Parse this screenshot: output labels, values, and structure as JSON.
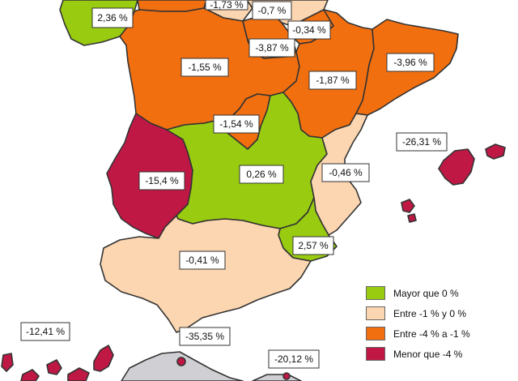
{
  "colors": {
    "green": "#99cc11",
    "light": "#fbd6b0",
    "orange": "#f26f0f",
    "crimson": "#c01845",
    "grey": "#d0d0d4",
    "border": "#333333"
  },
  "regions": [
    {
      "id": "galicia",
      "label": "2,36 %",
      "color": "green"
    },
    {
      "id": "asturias",
      "label": "-1,73 %",
      "color": "orange"
    },
    {
      "id": "cantabria",
      "label": "-0,7 %",
      "color": "light"
    },
    {
      "id": "pais-vasco",
      "label": "-0,34 %",
      "color": "light"
    },
    {
      "id": "la-rioja",
      "label": "-3,87 %",
      "color": "orange"
    },
    {
      "id": "navarra",
      "label": "",
      "color": "orange"
    },
    {
      "id": "castilla-leon",
      "label": "-1,55 %",
      "color": "orange"
    },
    {
      "id": "aragon",
      "label": "-1,87 %",
      "color": "orange"
    },
    {
      "id": "cataluna",
      "label": "-3,96 %",
      "color": "orange"
    },
    {
      "id": "madrid",
      "label": "-1,54 %",
      "color": "orange"
    },
    {
      "id": "baleares",
      "label": "-26,31 %",
      "color": "crimson"
    },
    {
      "id": "extremadura",
      "label": "-15,4 %",
      "color": "crimson"
    },
    {
      "id": "castilla-la-mancha",
      "label": "0,26 %",
      "color": "green"
    },
    {
      "id": "valencia",
      "label": "-0,46 %",
      "color": "light"
    },
    {
      "id": "murcia",
      "label": "2,57 %",
      "color": "green"
    },
    {
      "id": "andalucia",
      "label": "-0,41 %",
      "color": "light"
    },
    {
      "id": "canarias",
      "label": "-12,41 %",
      "color": "crimson"
    },
    {
      "id": "ceuta",
      "label": "-35,35 %",
      "color": "crimson"
    },
    {
      "id": "melilla",
      "label": "-20,12 %",
      "color": "crimson"
    }
  ],
  "legend": [
    {
      "label": "Mayor que 0 %",
      "color": "green"
    },
    {
      "label": "Entre -1 % y 0 %",
      "color": "light"
    },
    {
      "label": "Entre -4 % a -1 %",
      "color": "orange"
    },
    {
      "label": "Menor que -4 %",
      "color": "crimson"
    }
  ]
}
